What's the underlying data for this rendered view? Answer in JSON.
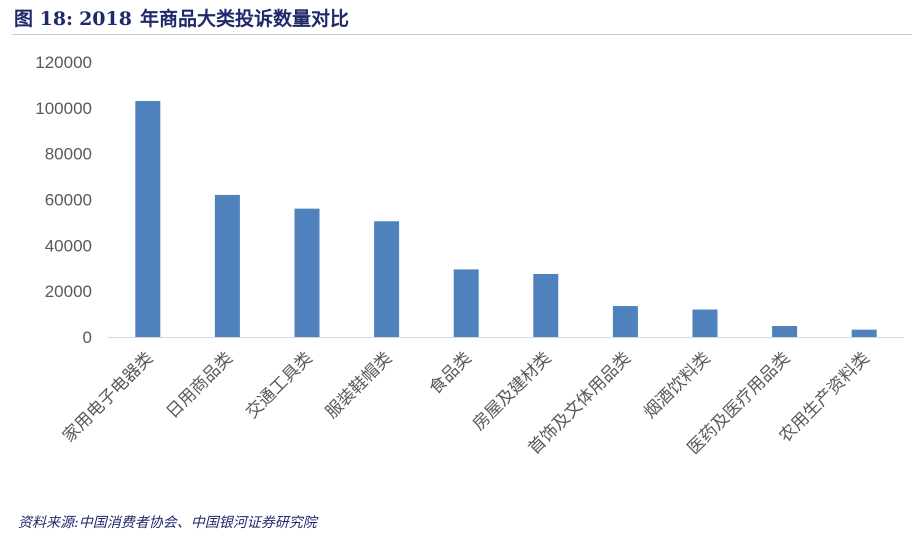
{
  "figure": {
    "label": "图 18:",
    "number": "2018",
    "title_text": "年商品大类投诉数量对比"
  },
  "chart_data": {
    "type": "bar",
    "title": "2018 年商品大类投诉数量对比",
    "xlabel": "",
    "ylabel": "",
    "categories": [
      "家用电子电器类",
      "日用商品类",
      "交通工具类",
      "服装鞋帽类",
      "食品类",
      "房屋及建材类",
      "首饰及文体用品类",
      "烟酒饮料类",
      "医药及医疗用品类",
      "农用生产资料类"
    ],
    "values": [
      103000,
      62000,
      56000,
      50500,
      29500,
      27500,
      13500,
      12000,
      4800,
      3200
    ],
    "ylim": [
      0,
      120000
    ],
    "yticks": [
      0,
      20000,
      40000,
      60000,
      80000,
      100000,
      120000
    ],
    "ytick_labels": [
      "0",
      "20000",
      "40000",
      "60000",
      "80000",
      "100000",
      "120000"
    ],
    "grid": false,
    "bar_color": "#4f81bd",
    "axis_color": "#d9d9d9"
  },
  "source": "资料来源:中国消费者协会、中国银河证券研究院"
}
